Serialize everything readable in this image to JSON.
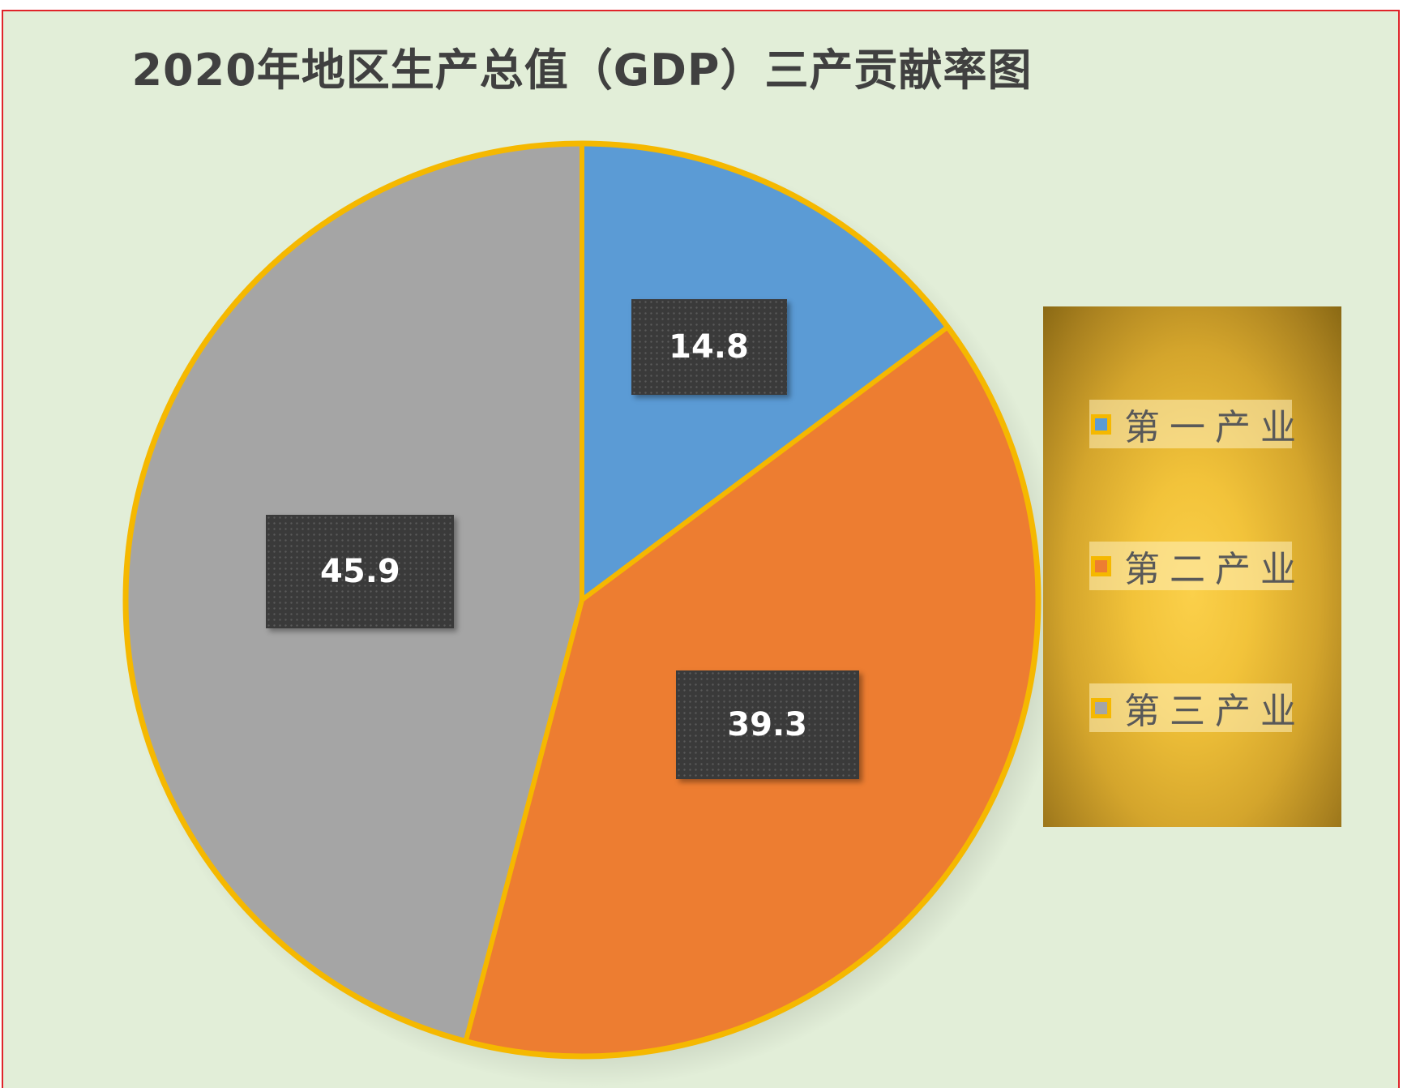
{
  "chart_data": {
    "type": "pie",
    "title": "2020年地区生产总值（GDP）三产贡献率图",
    "categories": [
      "第一产业",
      "第二产业",
      "第三产业"
    ],
    "values": [
      14.8,
      39.3,
      45.9
    ],
    "colors": [
      "#5b9bd5",
      "#ed7d31",
      "#a5a5a5"
    ],
    "slice_border_color": "#f5b800",
    "data_labels_shown": true,
    "legend_position": "right"
  },
  "legend": {
    "items": [
      {
        "label": "第一产业",
        "color": "#5b9bd5"
      },
      {
        "label": "第二产业",
        "color": "#ed7d31"
      },
      {
        "label": "第三产业",
        "color": "#a5a5a5"
      }
    ]
  },
  "colors": {
    "frame_border": "#e0242a",
    "plot_background": "#e2eed8",
    "label_box": "#3a3a3a"
  }
}
